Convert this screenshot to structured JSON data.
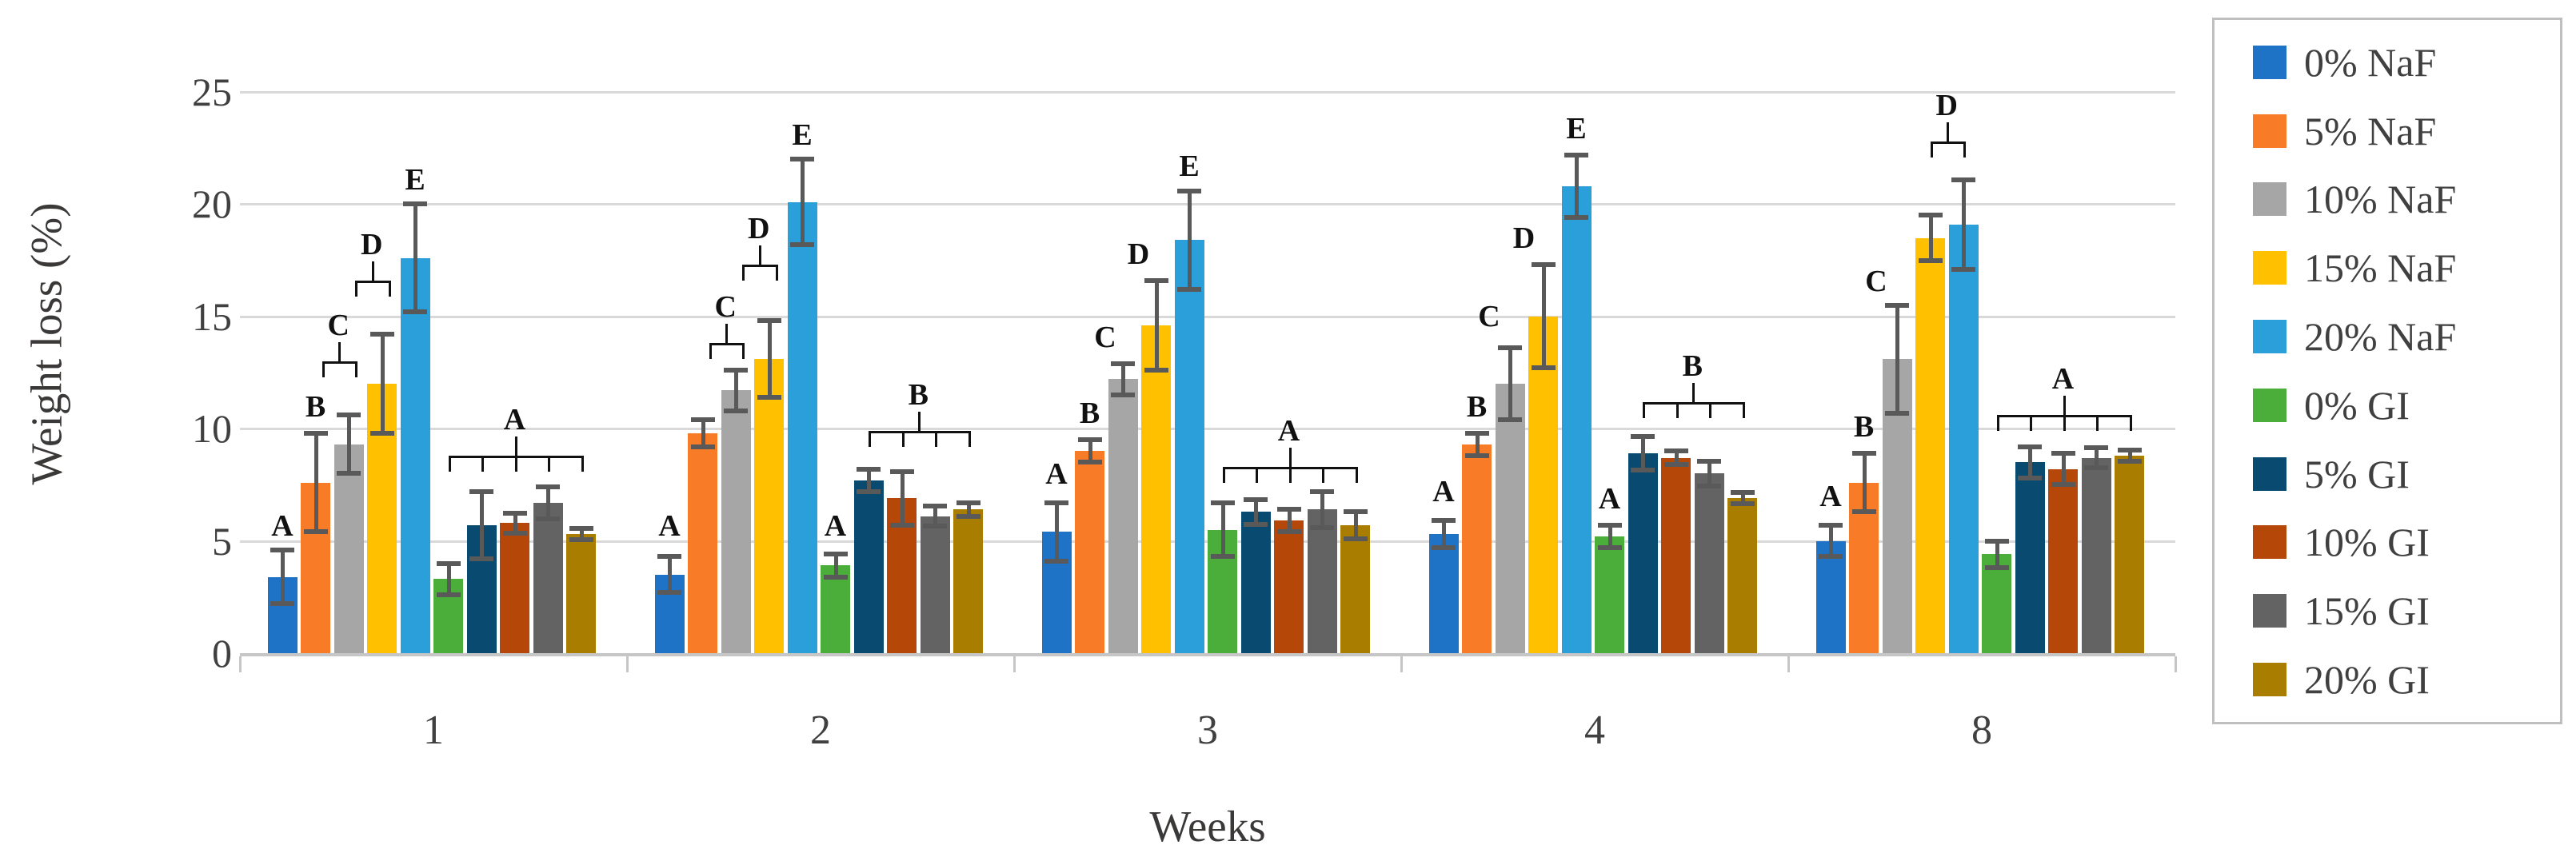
{
  "chart_data": {
    "type": "bar",
    "title": "",
    "xlabel": "Weeks",
    "ylabel": "Weight loss (%)",
    "ylim": [
      0,
      25
    ],
    "yticks": [
      0,
      5,
      10,
      15,
      20,
      25
    ],
    "categories": [
      "1",
      "2",
      "3",
      "4",
      "8"
    ],
    "grid": true,
    "legend_position": "right",
    "error_bar_color": "#595959",
    "gridline_color": "#d9d9d9",
    "series": [
      {
        "name": "0% NaF",
        "color": "#1e73c6",
        "values": [
          3.4,
          3.5,
          5.4,
          5.3,
          5.0
        ],
        "errors": [
          1.2,
          0.8,
          1.3,
          0.6,
          0.7
        ]
      },
      {
        "name": "5% NaF",
        "color": "#f87c28",
        "values": [
          7.6,
          9.8,
          9.0,
          9.3,
          7.6
        ],
        "errors": [
          2.2,
          0.6,
          0.5,
          0.5,
          1.3
        ]
      },
      {
        "name": "10% NaF",
        "color": "#a6a6a6",
        "values": [
          9.3,
          11.7,
          12.2,
          12.0,
          13.1
        ],
        "errors": [
          1.3,
          0.9,
          0.7,
          1.6,
          2.4
        ]
      },
      {
        "name": "15% NaF",
        "color": "#ffc000",
        "values": [
          12.0,
          13.1,
          14.6,
          15.0,
          18.5
        ],
        "errors": [
          2.2,
          1.7,
          2.0,
          2.3,
          1.0
        ]
      },
      {
        "name": "20% NaF",
        "color": "#2b9fd9",
        "values": [
          17.6,
          20.1,
          18.4,
          20.8,
          19.1
        ],
        "errors": [
          2.4,
          1.9,
          2.2,
          1.4,
          2.0
        ]
      },
      {
        "name": "0% GI",
        "color": "#4bae3b",
        "values": [
          3.3,
          3.9,
          5.5,
          5.2,
          4.4
        ],
        "errors": [
          0.7,
          0.5,
          1.2,
          0.5,
          0.6
        ]
      },
      {
        "name": "5% GI",
        "color": "#084a70",
        "values": [
          5.7,
          7.7,
          6.3,
          8.9,
          8.5
        ],
        "errors": [
          1.5,
          0.5,
          0.55,
          0.75,
          0.7
        ]
      },
      {
        "name": "10% GI",
        "color": "#b54708",
        "values": [
          5.8,
          6.9,
          5.9,
          8.7,
          8.2
        ],
        "errors": [
          0.45,
          1.2,
          0.5,
          0.3,
          0.7
        ]
      },
      {
        "name": "15% GI",
        "color": "#636363",
        "values": [
          6.7,
          6.1,
          6.4,
          8.0,
          8.7
        ],
        "errors": [
          0.7,
          0.45,
          0.8,
          0.55,
          0.45
        ]
      },
      {
        "name": "20% GI",
        "color": "#a87d00",
        "values": [
          5.3,
          6.4,
          5.7,
          6.9,
          8.8
        ],
        "errors": [
          0.25,
          0.3,
          0.6,
          0.25,
          0.25
        ]
      }
    ],
    "annotations": {
      "note": "statistical significance letters; brace2 = bracket joining two bars, braceN = bracket spanning bars b1..b2 with a leg on each bar",
      "groups": [
        [
          {
            "t": "letter",
            "bar": 0,
            "label": "A",
            "v": 5.0
          },
          {
            "t": "letter",
            "bar": 1,
            "label": "B",
            "v": 10.3
          },
          {
            "t": "brace2",
            "b1": 1,
            "b2": 2,
            "label": "C",
            "line": 13.0,
            "dx": 8
          },
          {
            "t": "brace2",
            "b1": 2,
            "b2": 3,
            "label": "D",
            "line": 16.6,
            "dx": 8
          },
          {
            "t": "letter",
            "bar": 4,
            "label": "E",
            "v": 20.4
          },
          {
            "t": "braceN",
            "b1": 5,
            "b2": 9,
            "label": "A",
            "line": 8.8,
            "stem": 7
          }
        ],
        [
          {
            "t": "letter",
            "bar": 0,
            "label": "A",
            "v": 5.0
          },
          {
            "t": "brace2",
            "b1": 1,
            "b2": 2,
            "label": "C",
            "line": 13.8,
            "dx": 8
          },
          {
            "t": "brace2",
            "b1": 2,
            "b2": 3,
            "label": "D",
            "line": 17.3,
            "dx": 8
          },
          {
            "t": "letter",
            "bar": 4,
            "label": "E",
            "v": 22.4
          },
          {
            "t": "letter",
            "bar": 5,
            "label": "A",
            "v": 5.0
          },
          {
            "t": "braceN",
            "b1": 6,
            "b2": 9,
            "label": "B",
            "line": 9.9,
            "stem": 7.5
          }
        ],
        [
          {
            "t": "letter",
            "bar": 0,
            "label": "A",
            "v": 7.3
          },
          {
            "t": "letter",
            "bar": 1,
            "label": "B",
            "v": 10.0
          },
          {
            "t": "letter",
            "bar": 2,
            "label": "C",
            "v": 13.4,
            "dx": -22
          },
          {
            "t": "letter",
            "bar": 3,
            "label": "D",
            "v": 17.1,
            "dx": -22
          },
          {
            "t": "letter",
            "bar": 4,
            "label": "E",
            "v": 21.0
          },
          {
            "t": "braceN",
            "b1": 5,
            "b2": 9,
            "label": "A",
            "line": 8.3,
            "stem": 7
          }
        ],
        [
          {
            "t": "letter",
            "bar": 0,
            "label": "A",
            "v": 6.5
          },
          {
            "t": "letter",
            "bar": 1,
            "label": "B",
            "v": 10.3
          },
          {
            "t": "letter",
            "bar": 2,
            "label": "C",
            "v": 14.3,
            "dx": -26
          },
          {
            "t": "letter",
            "bar": 3,
            "label": "D",
            "v": 17.8,
            "dx": -24
          },
          {
            "t": "letter",
            "bar": 4,
            "label": "E",
            "v": 22.7
          },
          {
            "t": "letter",
            "bar": 5,
            "label": "A",
            "v": 6.2
          },
          {
            "t": "braceN",
            "b1": 6,
            "b2": 9,
            "label": "B",
            "line": 11.2,
            "stem": 7.5
          }
        ],
        [
          {
            "t": "letter",
            "bar": 0,
            "label": "A",
            "v": 6.3
          },
          {
            "t": "letter",
            "bar": 1,
            "label": "B",
            "v": 9.4
          },
          {
            "t": "letter",
            "bar": 2,
            "label": "C",
            "v": 15.9,
            "dx": -26
          },
          {
            "t": "brace2",
            "b1": 3,
            "b2": 4,
            "label": "D",
            "line": 22.8,
            "dx": 0
          },
          {
            "t": "braceN",
            "b1": 5,
            "b2": 9,
            "label": "A",
            "line": 10.6,
            "stem": 7
          }
        ]
      ]
    }
  }
}
